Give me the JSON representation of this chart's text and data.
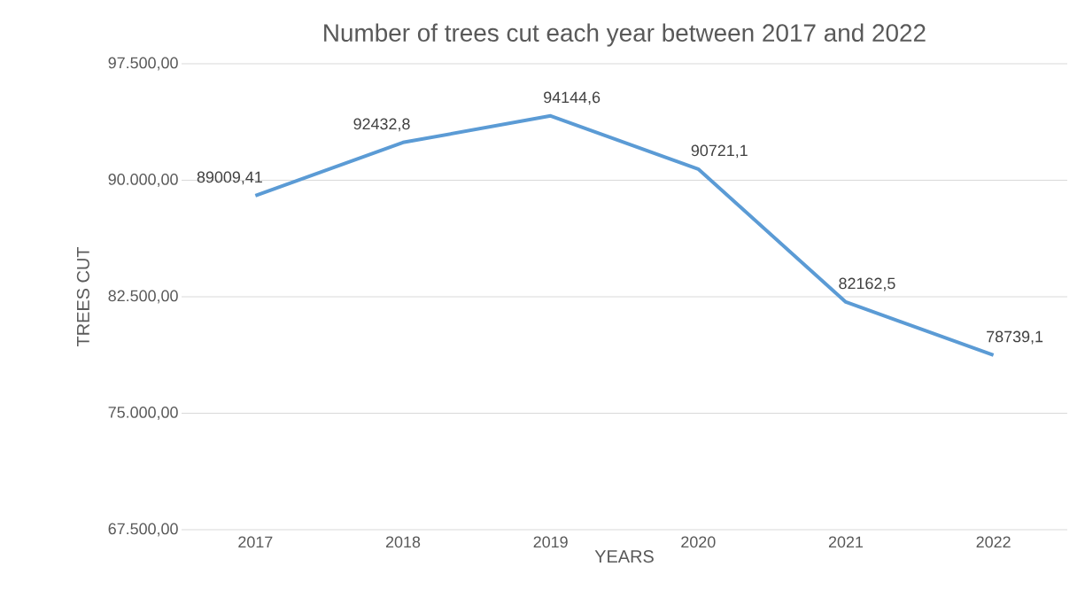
{
  "chart_data": {
    "type": "line",
    "title": "Number of trees cut each year between 2017 and 2022",
    "xlabel": "YEARS",
    "ylabel": "TREES CUT",
    "categories": [
      "2017",
      "2018",
      "2019",
      "2020",
      "2021",
      "2022"
    ],
    "values": [
      89009.41,
      92432.8,
      94144.6,
      90721.1,
      82162.5,
      78739.1
    ],
    "value_labels": [
      "89009,41",
      "92432,8",
      "94144,6",
      "90721,1",
      "82162,5",
      "78739,1"
    ],
    "color": "#5b9bd5",
    "ylim": [
      67500,
      97500
    ],
    "yticks": [
      {
        "value": 67500,
        "label": "67.500,00"
      },
      {
        "value": 75000,
        "label": "75.000,00"
      },
      {
        "value": 82500,
        "label": "82.500,00"
      },
      {
        "value": 90000,
        "label": "90.000,00"
      },
      {
        "value": 97500,
        "label": "97.500,00"
      }
    ],
    "grid": "y",
    "marker": "none",
    "line_style": "solid"
  }
}
